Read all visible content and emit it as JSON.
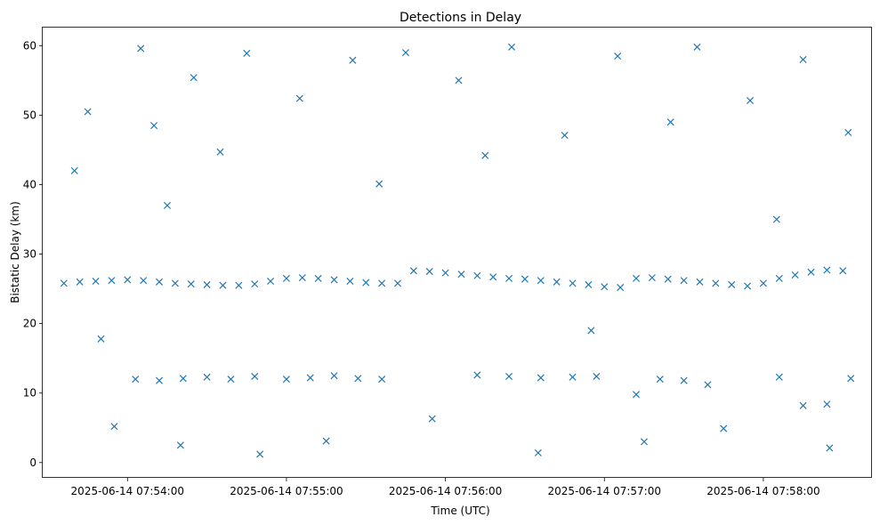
{
  "chart_data": {
    "type": "scatter",
    "title": "Detections in Delay",
    "xlabel": "Time (UTC)",
    "ylabel": "Bistatic Delay (km)",
    "marker": "x",
    "color": "#1f77b4",
    "grid": false,
    "legend": "none",
    "x_type": "datetime",
    "xlim": [
      "2025-06-14 07:53:28",
      "2025-06-14 07:58:41"
    ],
    "ylim": [
      -2.2,
      62.6
    ],
    "xticks": [
      "2025-06-14 07:54:00",
      "2025-06-14 07:55:00",
      "2025-06-14 07:56:00",
      "2025-06-14 07:57:00",
      "2025-06-14 07:58:00"
    ],
    "yticks": [
      0,
      10,
      20,
      30,
      40,
      50,
      60
    ],
    "series": [
      {
        "trend_points": [
          [
            "2025-06-14 07:53:36",
            25.8
          ],
          [
            "2025-06-14 07:53:42",
            26.0
          ],
          [
            "2025-06-14 07:53:48",
            26.1
          ],
          [
            "2025-06-14 07:53:54",
            26.2
          ],
          [
            "2025-06-14 07:54:00",
            26.3
          ],
          [
            "2025-06-14 07:54:06",
            26.2
          ],
          [
            "2025-06-14 07:54:12",
            26.0
          ],
          [
            "2025-06-14 07:54:18",
            25.8
          ],
          [
            "2025-06-14 07:54:24",
            25.7
          ],
          [
            "2025-06-14 07:54:30",
            25.6
          ],
          [
            "2025-06-14 07:54:36",
            25.5
          ],
          [
            "2025-06-14 07:54:42",
            25.5
          ],
          [
            "2025-06-14 07:54:48",
            25.7
          ],
          [
            "2025-06-14 07:54:54",
            26.1
          ],
          [
            "2025-06-14 07:55:00",
            26.5
          ],
          [
            "2025-06-14 07:55:06",
            26.6
          ],
          [
            "2025-06-14 07:55:12",
            26.5
          ],
          [
            "2025-06-14 07:55:18",
            26.3
          ],
          [
            "2025-06-14 07:55:24",
            26.1
          ],
          [
            "2025-06-14 07:55:30",
            25.9
          ],
          [
            "2025-06-14 07:55:36",
            25.8
          ],
          [
            "2025-06-14 07:55:42",
            25.8
          ],
          [
            "2025-06-14 07:55:48",
            27.6
          ],
          [
            "2025-06-14 07:55:54",
            27.5
          ],
          [
            "2025-06-14 07:56:00",
            27.3
          ],
          [
            "2025-06-14 07:56:06",
            27.1
          ],
          [
            "2025-06-14 07:56:12",
            26.9
          ],
          [
            "2025-06-14 07:56:18",
            26.7
          ],
          [
            "2025-06-14 07:56:24",
            26.5
          ],
          [
            "2025-06-14 07:56:30",
            26.4
          ],
          [
            "2025-06-14 07:56:36",
            26.2
          ],
          [
            "2025-06-14 07:56:42",
            26.0
          ],
          [
            "2025-06-14 07:56:48",
            25.8
          ],
          [
            "2025-06-14 07:56:54",
            25.6
          ],
          [
            "2025-06-14 07:57:00",
            25.3
          ],
          [
            "2025-06-14 07:57:06",
            25.2
          ],
          [
            "2025-06-14 07:57:12",
            26.5
          ],
          [
            "2025-06-14 07:57:18",
            26.6
          ],
          [
            "2025-06-14 07:57:24",
            26.4
          ],
          [
            "2025-06-14 07:57:30",
            26.2
          ],
          [
            "2025-06-14 07:57:36",
            26.0
          ],
          [
            "2025-06-14 07:57:42",
            25.8
          ],
          [
            "2025-06-14 07:57:48",
            25.6
          ],
          [
            "2025-06-14 07:57:54",
            25.4
          ],
          [
            "2025-06-14 07:58:00",
            25.8
          ],
          [
            "2025-06-14 07:58:06",
            26.5
          ],
          [
            "2025-06-14 07:58:12",
            27.0
          ],
          [
            "2025-06-14 07:58:18",
            27.4
          ],
          [
            "2025-06-14 07:58:24",
            27.7
          ],
          [
            "2025-06-14 07:58:30",
            27.6
          ],
          [
            "2025-06-14 07:54:03",
            12.0
          ],
          [
            "2025-06-14 07:54:12",
            11.8
          ],
          [
            "2025-06-14 07:54:21",
            12.1
          ],
          [
            "2025-06-14 07:54:30",
            12.3
          ],
          [
            "2025-06-14 07:54:39",
            12.0
          ],
          [
            "2025-06-14 07:54:48",
            12.4
          ],
          [
            "2025-06-14 07:55:00",
            12.0
          ],
          [
            "2025-06-14 07:55:09",
            12.2
          ],
          [
            "2025-06-14 07:55:18",
            12.5
          ],
          [
            "2025-06-14 07:55:27",
            12.1
          ],
          [
            "2025-06-14 07:55:36",
            12.0
          ],
          [
            "2025-06-14 07:56:12",
            12.6
          ],
          [
            "2025-06-14 07:56:24",
            12.4
          ],
          [
            "2025-06-14 07:56:36",
            12.2
          ],
          [
            "2025-06-14 07:56:48",
            12.3
          ],
          [
            "2025-06-14 07:56:57",
            12.4
          ],
          [
            "2025-06-14 07:57:12",
            9.8
          ],
          [
            "2025-06-14 07:57:21",
            12.0
          ],
          [
            "2025-06-14 07:57:30",
            11.8
          ],
          [
            "2025-06-14 07:57:39",
            11.2
          ],
          [
            "2025-06-14 07:58:06",
            12.3
          ],
          [
            "2025-06-14 07:58:15",
            8.2
          ],
          [
            "2025-06-14 07:58:24",
            8.4
          ],
          [
            "2025-06-14 07:58:33",
            12.1
          ],
          [
            "2025-06-14 07:53:40",
            42.0
          ],
          [
            "2025-06-14 07:53:45",
            50.5
          ],
          [
            "2025-06-14 07:53:50",
            17.8
          ],
          [
            "2025-06-14 07:53:55",
            5.2
          ],
          [
            "2025-06-14 07:54:05",
            59.6
          ],
          [
            "2025-06-14 07:54:10",
            48.5
          ],
          [
            "2025-06-14 07:54:15",
            37.0
          ],
          [
            "2025-06-14 07:54:20",
            2.5
          ],
          [
            "2025-06-14 07:54:25",
            55.4
          ],
          [
            "2025-06-14 07:54:35",
            44.7
          ],
          [
            "2025-06-14 07:54:45",
            58.9
          ],
          [
            "2025-06-14 07:54:50",
            1.2
          ],
          [
            "2025-06-14 07:55:05",
            52.4
          ],
          [
            "2025-06-14 07:55:15",
            3.1
          ],
          [
            "2025-06-14 07:55:25",
            57.9
          ],
          [
            "2025-06-14 07:55:35",
            40.1
          ],
          [
            "2025-06-14 07:55:45",
            59.0
          ],
          [
            "2025-06-14 07:55:55",
            6.3
          ],
          [
            "2025-06-14 07:56:05",
            55.0
          ],
          [
            "2025-06-14 07:56:15",
            44.2
          ],
          [
            "2025-06-14 07:56:25",
            59.8
          ],
          [
            "2025-06-14 07:56:35",
            1.4
          ],
          [
            "2025-06-14 07:56:45",
            47.1
          ],
          [
            "2025-06-14 07:56:55",
            19.0
          ],
          [
            "2025-06-14 07:57:05",
            58.5
          ],
          [
            "2025-06-14 07:57:15",
            3.0
          ],
          [
            "2025-06-14 07:57:25",
            49.0
          ],
          [
            "2025-06-14 07:57:35",
            59.8
          ],
          [
            "2025-06-14 07:57:45",
            4.9
          ],
          [
            "2025-06-14 07:57:55",
            52.1
          ],
          [
            "2025-06-14 07:58:05",
            35.0
          ],
          [
            "2025-06-14 07:58:15",
            58.0
          ],
          [
            "2025-06-14 07:58:25",
            2.1
          ],
          [
            "2025-06-14 07:58:32",
            47.5
          ]
        ]
      }
    ]
  }
}
